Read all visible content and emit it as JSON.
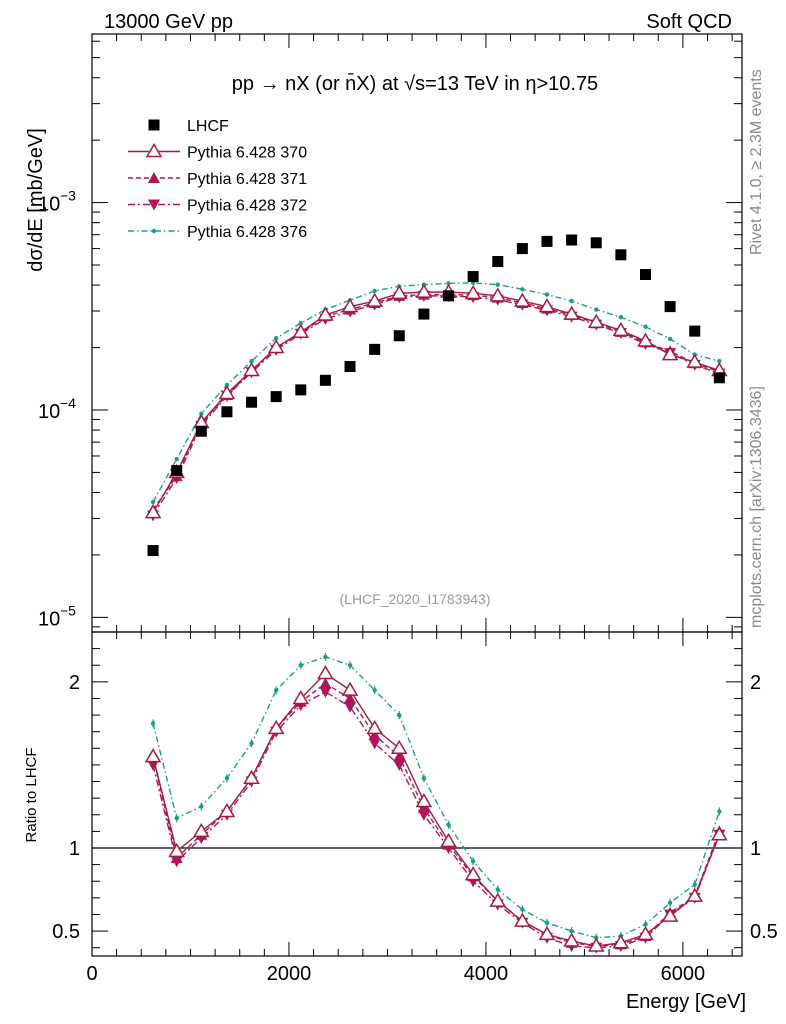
{
  "header": {
    "left": "13000 GeV pp",
    "right": "Soft QCD"
  },
  "side_text": {
    "rivet": "Rivet 4.1.0, ≥ 2.3M events",
    "source": "mcplots.cern.ch [arXiv:1306.3436]"
  },
  "chart_data": {
    "type": "scatter",
    "title": "pp → nX (or n̄X) at √s=13 TeV in η>10.75",
    "watermark": "(LHCF_2020_I1783943)",
    "xlabel": "Energy [GeV]",
    "ylabel": "dσ/dE [mb/GeV]",
    "ratio_ylabel": "Ratio to LHCF",
    "xlim": [
      0,
      6600
    ],
    "ylim": [
      8.5e-06,
      0.0065
    ],
    "ylog": true,
    "ratio_ylim": [
      0.35,
      2.3
    ],
    "x_ticks": [
      "0",
      "2000",
      "4000",
      "6000"
    ],
    "x_tick_values": [
      0,
      2000,
      4000,
      6000
    ],
    "y_tick_values": [
      1e-05,
      0.0001,
      0.001
    ],
    "y_tick_labels": [
      {
        "base": "10",
        "exp": "−5"
      },
      {
        "base": "10",
        "exp": "−4"
      },
      {
        "base": "10",
        "exp": "−3"
      }
    ],
    "ratio_ticks": [
      "0.5",
      "1",
      "2"
    ],
    "ratio_tick_values": [
      0.5,
      1,
      2
    ],
    "x": [
      620,
      860,
      1110,
      1370,
      1620,
      1870,
      2120,
      2370,
      2620,
      2870,
      3120,
      3370,
      3620,
      3870,
      4120,
      4370,
      4620,
      4870,
      5120,
      5370,
      5620,
      5870,
      6120,
      6370
    ],
    "series": [
      {
        "name": "LHCF",
        "style": "data",
        "color": "#000000",
        "values": [
          2.1e-05,
          5.1e-05,
          7.9e-05,
          9.8e-05,
          0.000109,
          0.000116,
          0.000125,
          0.000139,
          0.000162,
          0.000196,
          0.000228,
          0.00029,
          0.000355,
          0.00044,
          0.00052,
          0.0006,
          0.00065,
          0.00066,
          0.00064,
          0.00056,
          0.00045,
          0.000315,
          0.00024,
          0.000143
        ],
        "ratio": [
          1,
          1,
          1,
          1,
          1,
          1,
          1,
          1,
          1,
          1,
          1,
          1,
          1,
          1,
          1,
          1,
          1,
          1,
          1,
          1,
          1,
          1,
          1,
          1
        ]
      },
      {
        "name": "Pythia 6.428 370",
        "style": "solid",
        "marker": "triangle-up-open",
        "color": "#a31d3c",
        "values": [
          3.2e-05,
          5e-05,
          8.7e-05,
          0.00012,
          0.000155,
          0.0002,
          0.000237,
          0.000287,
          0.000315,
          0.000335,
          0.000365,
          0.00037,
          0.00037,
          0.000365,
          0.000355,
          0.000335,
          0.000315,
          0.00029,
          0.000265,
          0.000242,
          0.000215,
          0.000185,
          0.00017,
          0.000155
        ],
        "ratio": [
          1.55,
          0.98,
          1.1,
          1.22,
          1.42,
          1.72,
          1.9,
          2.05,
          1.95,
          1.72,
          1.6,
          1.28,
          1.04,
          0.84,
          0.68,
          0.56,
          0.48,
          0.44,
          0.41,
          0.43,
          0.48,
          0.59,
          0.71,
          1.08
        ]
      },
      {
        "name": "Pythia 6.428 371",
        "style": "dashed",
        "marker": "triangle-up",
        "color": "#b0145a",
        "values": [
          3.3e-05,
          4.8e-05,
          8.6e-05,
          0.000118,
          0.000154,
          0.0002,
          0.000235,
          0.000283,
          0.000305,
          0.000328,
          0.000355,
          0.00036,
          0.00036,
          0.000358,
          0.000348,
          0.000328,
          0.000308,
          0.000287,
          0.000262,
          0.000238,
          0.000212,
          0.000192,
          0.000168,
          0.000153
        ],
        "ratio": [
          1.55,
          0.94,
          1.08,
          1.22,
          1.42,
          1.72,
          1.88,
          1.99,
          1.9,
          1.68,
          1.55,
          1.24,
          1.02,
          0.83,
          0.68,
          0.56,
          0.48,
          0.43,
          0.41,
          0.42,
          0.47,
          0.61,
          0.71,
          1.1
        ]
      },
      {
        "name": "Pythia 6.428 372",
        "style": "dashdot",
        "marker": "triangle-down",
        "color": "#b0145a",
        "values": [
          3.1e-05,
          4.7e-05,
          8.4e-05,
          0.000117,
          0.000152,
          0.000195,
          0.000233,
          0.000275,
          0.000298,
          0.000322,
          0.00035,
          0.000355,
          0.000355,
          0.00035,
          0.00034,
          0.000322,
          0.000302,
          0.000282,
          0.000258,
          0.000235,
          0.000208,
          0.000188,
          0.000165,
          0.00015
        ],
        "ratio": [
          1.5,
          0.92,
          1.06,
          1.2,
          1.4,
          1.7,
          1.86,
          1.94,
          1.85,
          1.63,
          1.5,
          1.2,
          1.0,
          0.8,
          0.66,
          0.55,
          0.46,
          0.41,
          0.4,
          0.41,
          0.46,
          0.6,
          0.7,
          1.08
        ]
      },
      {
        "name": "Pythia 6.428 376",
        "style": "dashdot-teal",
        "marker": "dot",
        "color": "#1b9e8a",
        "values": [
          3.6e-05,
          5.8e-05,
          9.6e-05,
          0.000132,
          0.000172,
          0.000222,
          0.000262,
          0.000305,
          0.000338,
          0.000375,
          0.000395,
          0.000402,
          0.000408,
          0.00041,
          0.000402,
          0.000382,
          0.00036,
          0.000335,
          0.000305,
          0.00028,
          0.000252,
          0.00022,
          0.000185,
          0.000172
        ],
        "ratio": [
          1.75,
          1.18,
          1.25,
          1.42,
          1.63,
          1.95,
          2.1,
          2.15,
          2.1,
          1.95,
          1.8,
          1.42,
          1.14,
          0.92,
          0.75,
          0.63,
          0.55,
          0.5,
          0.46,
          0.47,
          0.54,
          0.67,
          0.78,
          1.22
        ]
      }
    ]
  }
}
